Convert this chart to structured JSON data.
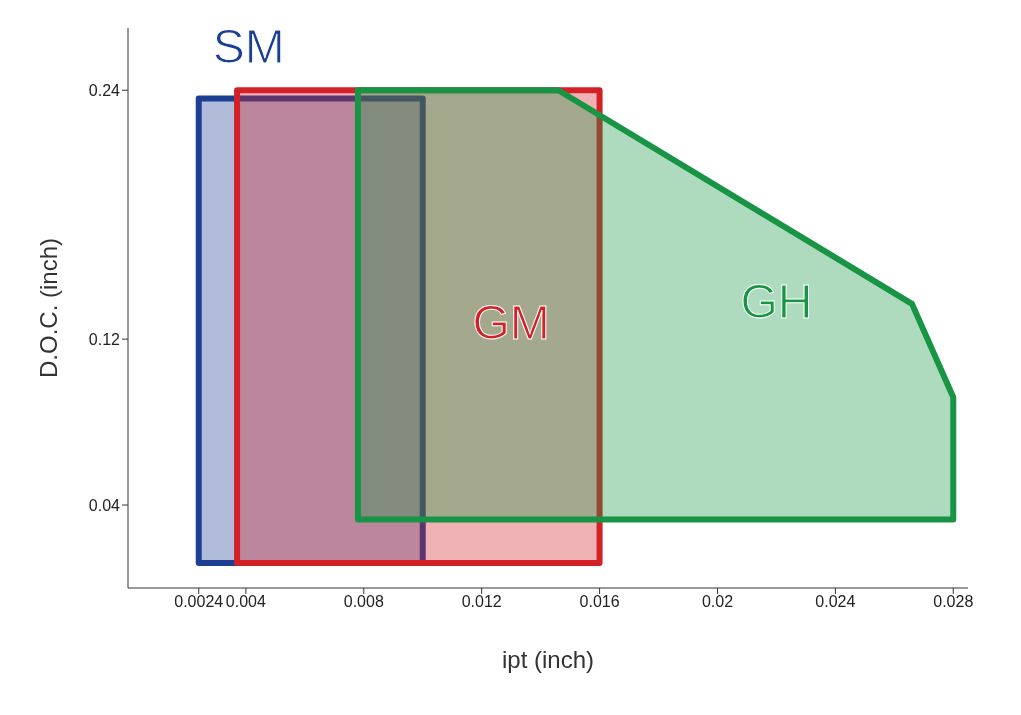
{
  "chart_data": {
    "type": "area",
    "xlabel": "ipt (inch)",
    "ylabel": "D.O.C. (inch)",
    "xlim": [
      0,
      0.0285
    ],
    "xticks": [
      0.0024,
      0.004,
      0.008,
      0.012,
      0.016,
      0.02,
      0.024,
      {
        "value": 0.028,
        "label": "0.028"
      }
    ],
    "ylim": [
      0,
      0.27
    ],
    "yticks": [
      0.04,
      0.12,
      0.24
    ],
    "grid": false,
    "series": [
      {
        "name": "SM",
        "color": "#1c3f94",
        "x": [
          0.0024,
          0.01,
          0.01,
          0.0024
        ],
        "values": [
          0.012,
          0.012,
          0.236,
          0.236
        ]
      },
      {
        "name": "GM",
        "color": "#d42128",
        "x": [
          0.0037,
          0.016,
          0.016,
          0.0037
        ],
        "values": [
          0.012,
          0.012,
          0.24,
          0.24
        ]
      },
      {
        "name": "GH",
        "color": "#179444",
        "x": [
          0.0078,
          0.028,
          0.028,
          0.0266,
          0.0146,
          0.0078
        ],
        "values": [
          0.033,
          0.033,
          0.092,
          0.137,
          0.24,
          0.24
        ]
      }
    ]
  }
}
